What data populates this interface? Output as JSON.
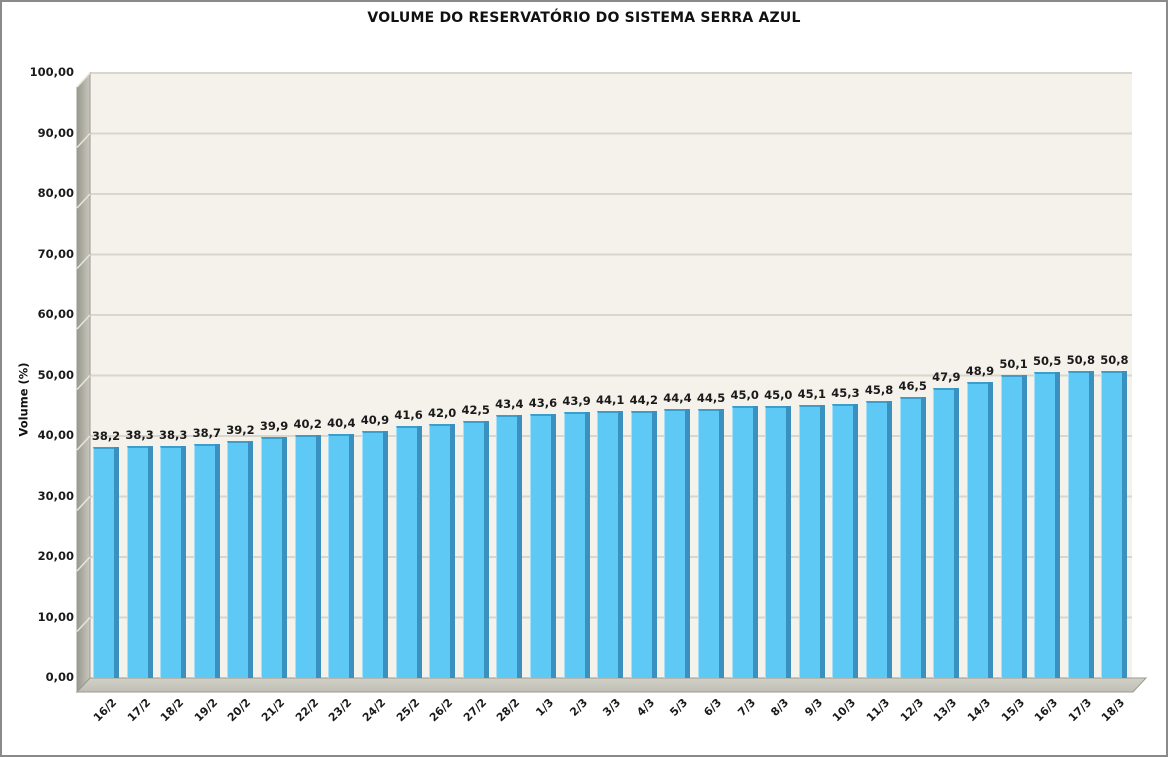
{
  "chart_data": {
    "type": "bar",
    "title": "VOLUME DO RESERVATÓRIO DO SISTEMA SERRA AZUL",
    "xlabel": "",
    "ylabel": "Volume (%)",
    "ylim": [
      0,
      100
    ],
    "grid": true,
    "legend_position": "none",
    "decimal_separator": ",",
    "categories": [
      "16/2",
      "17/2",
      "18/2",
      "19/2",
      "20/2",
      "21/2",
      "22/2",
      "23/2",
      "24/2",
      "25/2",
      "26/2",
      "27/2",
      "28/2",
      "1/3",
      "2/3",
      "3/3",
      "4/3",
      "5/3",
      "6/3",
      "7/3",
      "8/3",
      "9/3",
      "10/3",
      "11/3",
      "12/3",
      "13/3",
      "14/3",
      "15/3",
      "16/3",
      "17/3",
      "18/3"
    ],
    "values": [
      38.2,
      38.3,
      38.3,
      38.7,
      39.2,
      39.9,
      40.2,
      40.4,
      40.9,
      41.6,
      42.0,
      42.5,
      43.4,
      43.6,
      43.9,
      44.1,
      44.2,
      44.4,
      44.5,
      45.0,
      45.0,
      45.1,
      45.3,
      45.8,
      46.5,
      47.9,
      48.9,
      50.1,
      50.5,
      50.8,
      50.8
    ],
    "value_labels": [
      "38,2",
      "38,3",
      "38,3",
      "38,7",
      "39,2",
      "39,9",
      "40,2",
      "40,4",
      "40,9",
      "41,6",
      "42,0",
      "42,5",
      "43,4",
      "43,6",
      "43,9",
      "44,1",
      "44,2",
      "44,4",
      "44,5",
      "45,0",
      "45,0",
      "45,1",
      "45,3",
      "45,8",
      "46,5",
      "47,9",
      "48,9",
      "50,1",
      "50,5",
      "50,8",
      "50,8"
    ],
    "y_tick_values": [
      0,
      10,
      20,
      30,
      40,
      50,
      60,
      70,
      80,
      90,
      100
    ],
    "y_tick_labels": [
      "0,00",
      "10,00",
      "20,00",
      "30,00",
      "40,00",
      "50,00",
      "60,00",
      "70,00",
      "80,00",
      "90,00",
      "100,00"
    ],
    "colors": {
      "bar_face": "#5ec9f4",
      "bar_side": "#3a90bf",
      "bar_top_edge": "#3e9ecb",
      "bar_left_highlight": "#a5e0f9",
      "plot_background": "#f4f2eb",
      "gridline": "#d9d6cb",
      "wall_dark": "#99988d",
      "wall_light": "#c9c8be",
      "floor_light": "#d2d1c7",
      "floor_dark": "#c0bfb5",
      "edge_line": "#9b9a90",
      "text": "#1a1a1a",
      "frame_border": "#8a8a8a"
    }
  }
}
